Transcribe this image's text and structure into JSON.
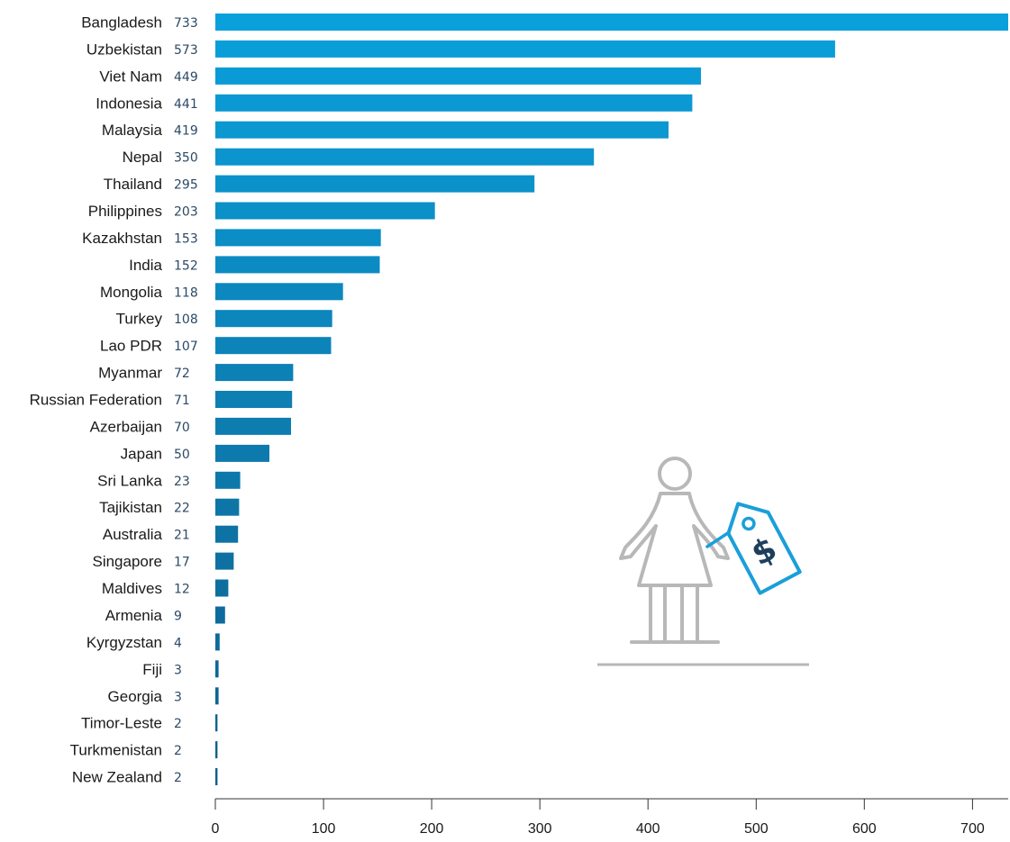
{
  "chart_data": {
    "type": "bar",
    "orientation": "horizontal",
    "categories": [
      "Bangladesh",
      "Uzbekistan",
      "Viet Nam",
      "Indonesia",
      "Malaysia",
      "Nepal",
      "Thailand",
      "Philippines",
      "Kazakhstan",
      "India",
      "Mongolia",
      "Turkey",
      "Lao PDR",
      "Myanmar",
      "Russian Federation",
      "Azerbaijan",
      "Japan",
      "Sri Lanka",
      "Tajikistan",
      "Australia",
      "Singapore",
      "Maldives",
      "Armenia",
      "Kyrgyzstan",
      "Fiji",
      "Georgia",
      "Timor-Leste",
      "Turkmenistan",
      "New Zealand"
    ],
    "values": [
      733,
      573,
      449,
      441,
      419,
      350,
      295,
      203,
      153,
      152,
      118,
      108,
      107,
      72,
      71,
      70,
      50,
      23,
      22,
      21,
      17,
      12,
      9,
      4,
      3,
      3,
      2,
      2,
      2
    ],
    "value_labels": [
      "733",
      "573",
      "449",
      "441",
      "419",
      "350",
      "295",
      "203",
      "153",
      "152",
      "118",
      "108",
      "107",
      "72",
      "71",
      "70",
      "50",
      "23",
      "22",
      "21",
      "17",
      "12",
      "9",
      "4",
      "3",
      "3",
      "2",
      "2",
      "2"
    ],
    "xlim": [
      0,
      733
    ],
    "xticks": [
      0,
      100,
      200,
      300,
      400,
      500,
      600,
      700
    ],
    "xtick_labels": [
      "0",
      "100",
      "200",
      "300",
      "400",
      "500",
      "600",
      "700"
    ],
    "grid": false,
    "legend": "none",
    "bar_color_top": "#0aa0dc",
    "bar_color_bottom": "#0f5e8a"
  },
  "illustration": {
    "icon": "woman-with-price-tag-icon",
    "figure_color": "#b8b8b8",
    "tag_color": "#1a9fd9",
    "symbol_color": "#1e3f5c",
    "symbol": "$"
  }
}
